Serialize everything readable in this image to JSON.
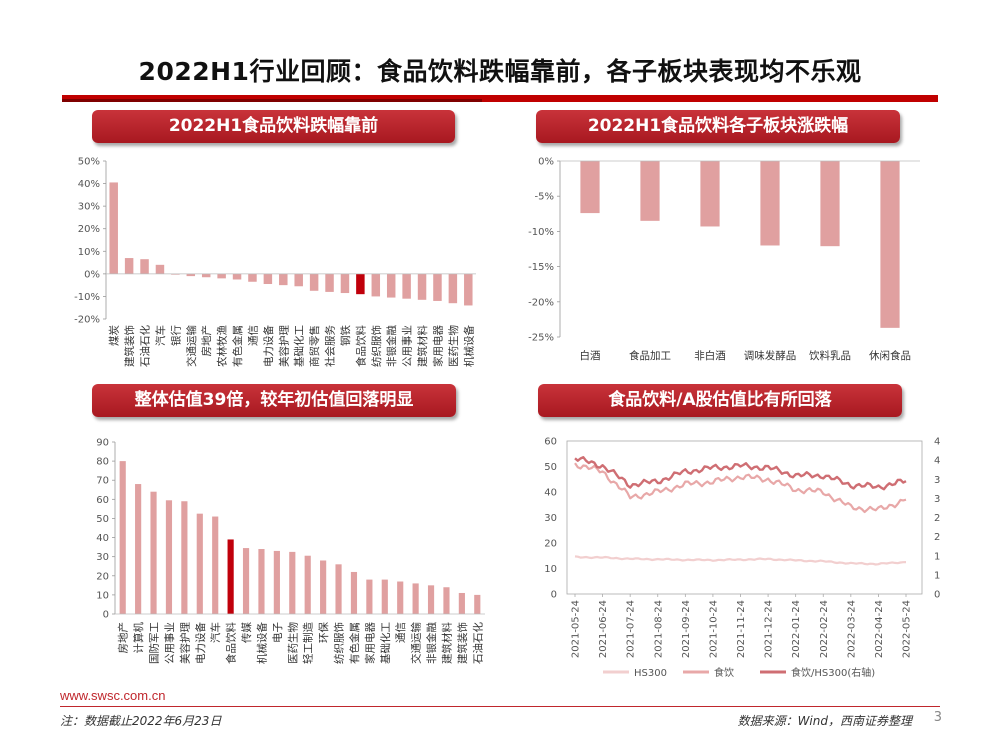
{
  "page": {
    "title": "2022H1行业回顾：食品饮料跌幅靠前，各子板块表现均不乐观",
    "page_number": "3",
    "footer_url": "www.swsc.com.cn",
    "note": "注：数据截止2022年6月23日",
    "source": "数据来源：Wind，西南证券整理"
  },
  "colors": {
    "bar": "#e0a0a0",
    "highlight": "#c0000b",
    "line_light": "#f2cfcf",
    "line_mid": "#e8a8a8",
    "line_dark": "#cf6e73",
    "banner": "#b5232a",
    "rule_dark": "#c00000"
  },
  "panels": {
    "tl_title": "2022H1食品饮料跌幅靠前",
    "tr_title": "2022H1食品饮料各子板块涨跌幅",
    "bl_title": "整体估值39倍，较年初估值回落明显",
    "br_title": "食品饮料/A股估值比有所回落"
  },
  "chart_data": [
    {
      "id": "industry_returns",
      "type": "bar",
      "title": "2022H1食品饮料跌幅靠前",
      "categories": [
        "煤炭",
        "建筑装饰",
        "石油石化",
        "汽车",
        "银行",
        "交通运输",
        "房地产",
        "农林牧渔",
        "有色金属",
        "通信",
        "电力设备",
        "美容护理",
        "基础化工",
        "商贸零售",
        "社会服务",
        "钢铁",
        "食品饮料",
        "纺织服饰",
        "非银金融",
        "公用事业",
        "建筑材料",
        "家用电器",
        "医药生物",
        "机械设备"
      ],
      "values": [
        40.5,
        7,
        6.5,
        4,
        0,
        -1,
        -1.5,
        -2,
        -2.5,
        -3.5,
        -4.5,
        -5,
        -5.5,
        -7.5,
        -8,
        -8.5,
        -9,
        -10,
        -10.5,
        -11,
        -11.5,
        -12,
        -13,
        -14
      ],
      "highlight": "食品饮料",
      "ylim": [
        -20,
        50
      ],
      "yticks": [
        "50%",
        "40%",
        "30%",
        "20%",
        "10%",
        "0%",
        "-10%",
        "-20%"
      ]
    },
    {
      "id": "subsector_returns",
      "type": "bar",
      "title": "2022H1食品饮料各子板块涨跌幅",
      "categories": [
        "白酒",
        "食品加工",
        "非白酒",
        "调味发酵品",
        "饮料乳品",
        "休闲食品"
      ],
      "values": [
        -7.4,
        -8.5,
        -9.3,
        -12,
        -12.1,
        -23.7
      ],
      "ylim": [
        -25,
        0
      ],
      "yticks": [
        "0%",
        "-5%",
        "-10%",
        "-15%",
        "-20%",
        "-25%"
      ]
    },
    {
      "id": "industry_pe",
      "type": "bar",
      "title": "整体估值39倍，较年初估值回落明显",
      "categories": [
        "房地产",
        "计算机",
        "国防军工",
        "公用事业",
        "美容护理",
        "电力设备",
        "汽车",
        "食品饮料",
        "传媒",
        "机械设备",
        "电子",
        "医药生物",
        "轻工制造",
        "环保",
        "纺织服饰",
        "有色金属",
        "家用电器",
        "基础化工",
        "通信",
        "交通运输",
        "非银金融",
        "建筑材料",
        "建筑装饰",
        "石油石化"
      ],
      "values": [
        80,
        68,
        64,
        59.5,
        59,
        52.5,
        51,
        39,
        34.5,
        34,
        33,
        32.5,
        30.5,
        28,
        26,
        22,
        18,
        18,
        17,
        16,
        15,
        14,
        11,
        10
      ],
      "highlight": "食品饮料",
      "ylim": [
        0,
        90
      ],
      "yticks": [
        "90",
        "80",
        "70",
        "60",
        "50",
        "40",
        "30",
        "20",
        "10",
        "0"
      ]
    },
    {
      "id": "pe_ratio_lines",
      "type": "line",
      "title": "食品饮料/A股估值比有所回落",
      "x": [
        "2021-05-24",
        "2021-06-24",
        "2021-07-24",
        "2021-08-24",
        "2021-09-24",
        "2021-10-24",
        "2021-11-24",
        "2021-12-24",
        "2022-01-24",
        "2022-02-24",
        "2022-03-24",
        "2022-04-24",
        "2022-05-24"
      ],
      "left_ylim": [
        0,
        60
      ],
      "right_ylim": [
        0,
        4
      ],
      "left_yticks": [
        "60",
        "50",
        "40",
        "30",
        "20",
        "10",
        "0"
      ],
      "right_yticks": [
        "4",
        "4",
        "3",
        "3",
        "2",
        "2",
        "1",
        "1",
        "0"
      ],
      "series": [
        {
          "name": "HS300",
          "axis": "left",
          "values": [
            14.5,
            14.3,
            13.8,
            13.6,
            13.4,
            13.3,
            13.5,
            13.7,
            13.2,
            12.8,
            12.0,
            11.8,
            12.5
          ]
        },
        {
          "name": "食饮",
          "axis": "left",
          "values": [
            51,
            48,
            38,
            40,
            43,
            44,
            46,
            45,
            41,
            40,
            34,
            33,
            37
          ]
        },
        {
          "name": "食饮/HS300(右轴)",
          "axis": "right",
          "values": [
            3.55,
            3.35,
            2.85,
            2.95,
            3.2,
            3.3,
            3.35,
            3.3,
            3.1,
            3.1,
            2.85,
            2.8,
            2.95
          ]
        }
      ]
    }
  ]
}
